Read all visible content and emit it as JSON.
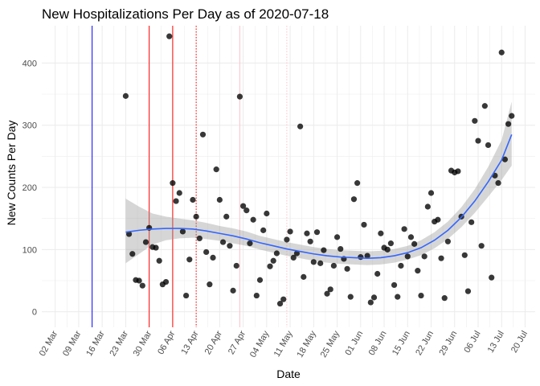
{
  "chart_data": {
    "type": "scatter",
    "title": "New Hospitalizations Per Day as of 2020-07-18",
    "xlabel": "Date",
    "ylabel": "New Counts Per Day",
    "x_range": [
      "2020-02-27",
      "2020-07-23"
    ],
    "ylim": [
      -25,
      460
    ],
    "y_ticks": [
      0,
      100,
      200,
      300,
      400
    ],
    "x_ticks": [
      {
        "date": "2020-03-02",
        "label": "02 Mar"
      },
      {
        "date": "2020-03-09",
        "label": "09 Mar"
      },
      {
        "date": "2020-03-16",
        "label": "16 Mar"
      },
      {
        "date": "2020-03-23",
        "label": "23 Mar"
      },
      {
        "date": "2020-03-30",
        "label": "30 Mar"
      },
      {
        "date": "2020-04-06",
        "label": "06 Apr"
      },
      {
        "date": "2020-04-13",
        "label": "13 Apr"
      },
      {
        "date": "2020-04-20",
        "label": "20 Apr"
      },
      {
        "date": "2020-04-27",
        "label": "27 Apr"
      },
      {
        "date": "2020-05-04",
        "label": "04 May"
      },
      {
        "date": "2020-05-11",
        "label": "11 May"
      },
      {
        "date": "2020-05-18",
        "label": "18 May"
      },
      {
        "date": "2020-05-25",
        "label": "25 May"
      },
      {
        "date": "2020-06-01",
        "label": "01 Jun"
      },
      {
        "date": "2020-06-08",
        "label": "08 Jun"
      },
      {
        "date": "2020-06-15",
        "label": "15 Jun"
      },
      {
        "date": "2020-06-22",
        "label": "22 Jun"
      },
      {
        "date": "2020-06-29",
        "label": "29 Jun"
      },
      {
        "date": "2020-07-06",
        "label": "06 Jul"
      },
      {
        "date": "2020-07-13",
        "label": "13 Jul"
      },
      {
        "date": "2020-07-20",
        "label": "20 Jul"
      }
    ],
    "grid": true,
    "vlines": [
      {
        "date": "2020-03-13",
        "color": "#0000ff",
        "style": "solid"
      },
      {
        "date": "2020-03-30",
        "color": "#ff0000",
        "style": "solid"
      },
      {
        "date": "2020-04-06",
        "color": "#ff0000",
        "style": "solid"
      },
      {
        "date": "2020-04-13",
        "color": "#ff0000",
        "style": "dotted"
      },
      {
        "date": "2020-04-26",
        "color": "#ffc0cb",
        "style": "solid"
      },
      {
        "date": "2020-05-10",
        "color": "#ffc0cb",
        "style": "dotted"
      }
    ],
    "point_color": "#000000",
    "smooth_color": "#3366ff",
    "ribbon_color": "#999999",
    "points": [
      [
        "2020-03-23",
        347
      ],
      [
        "2020-03-24",
        125
      ],
      [
        "2020-03-25",
        93
      ],
      [
        "2020-03-26",
        51
      ],
      [
        "2020-03-27",
        50
      ],
      [
        "2020-03-28",
        42
      ],
      [
        "2020-03-29",
        112
      ],
      [
        "2020-03-30",
        135
      ],
      [
        "2020-03-31",
        104
      ],
      [
        "2020-04-01",
        103
      ],
      [
        "2020-04-02",
        82
      ],
      [
        "2020-04-03",
        44
      ],
      [
        "2020-04-04",
        48
      ],
      [
        "2020-04-05",
        443
      ],
      [
        "2020-04-06",
        207
      ],
      [
        "2020-04-07",
        178
      ],
      [
        "2020-04-08",
        191
      ],
      [
        "2020-04-09",
        129
      ],
      [
        "2020-04-10",
        26
      ],
      [
        "2020-04-11",
        84
      ],
      [
        "2020-04-12",
        180
      ],
      [
        "2020-04-13",
        153
      ],
      [
        "2020-04-14",
        118
      ],
      [
        "2020-04-15",
        285
      ],
      [
        "2020-04-16",
        96
      ],
      [
        "2020-04-17",
        44
      ],
      [
        "2020-04-18",
        87
      ],
      [
        "2020-04-19",
        229
      ],
      [
        "2020-04-20",
        180
      ],
      [
        "2020-04-21",
        112
      ],
      [
        "2020-04-22",
        153
      ],
      [
        "2020-04-23",
        106
      ],
      [
        "2020-04-24",
        34
      ],
      [
        "2020-04-25",
        74
      ],
      [
        "2020-04-26",
        346
      ],
      [
        "2020-04-27",
        170
      ],
      [
        "2020-04-28",
        163
      ],
      [
        "2020-04-29",
        110
      ],
      [
        "2020-04-30",
        148
      ],
      [
        "2020-05-01",
        26
      ],
      [
        "2020-05-02",
        51
      ],
      [
        "2020-05-03",
        131
      ],
      [
        "2020-05-04",
        158
      ],
      [
        "2020-05-05",
        73
      ],
      [
        "2020-05-06",
        82
      ],
      [
        "2020-05-07",
        94
      ],
      [
        "2020-05-08",
        13
      ],
      [
        "2020-05-09",
        20
      ],
      [
        "2020-05-10",
        116
      ],
      [
        "2020-05-11",
        129
      ],
      [
        "2020-05-12",
        87
      ],
      [
        "2020-05-13",
        94
      ],
      [
        "2020-05-14",
        298
      ],
      [
        "2020-05-15",
        56
      ],
      [
        "2020-05-16",
        126
      ],
      [
        "2020-05-17",
        113
      ],
      [
        "2020-05-18",
        80
      ],
      [
        "2020-05-19",
        128
      ],
      [
        "2020-05-20",
        78
      ],
      [
        "2020-05-21",
        99
      ],
      [
        "2020-05-22",
        29
      ],
      [
        "2020-05-23",
        36
      ],
      [
        "2020-05-24",
        74
      ],
      [
        "2020-05-25",
        120
      ],
      [
        "2020-05-26",
        101
      ],
      [
        "2020-05-27",
        85
      ],
      [
        "2020-05-28",
        69
      ],
      [
        "2020-05-29",
        24
      ],
      [
        "2020-05-30",
        181
      ],
      [
        "2020-05-31",
        207
      ],
      [
        "2020-06-01",
        88
      ],
      [
        "2020-06-02",
        140
      ],
      [
        "2020-06-03",
        90
      ],
      [
        "2020-06-04",
        15
      ],
      [
        "2020-06-05",
        23
      ],
      [
        "2020-06-06",
        61
      ],
      [
        "2020-06-07",
        126
      ],
      [
        "2020-06-08",
        103
      ],
      [
        "2020-06-09",
        100
      ],
      [
        "2020-06-10",
        110
      ],
      [
        "2020-06-11",
        43
      ],
      [
        "2020-06-12",
        24
      ],
      [
        "2020-06-13",
        74
      ],
      [
        "2020-06-14",
        133
      ],
      [
        "2020-06-15",
        89
      ],
      [
        "2020-06-16",
        120
      ],
      [
        "2020-06-17",
        109
      ],
      [
        "2020-06-18",
        66
      ],
      [
        "2020-06-19",
        26
      ],
      [
        "2020-06-20",
        89
      ],
      [
        "2020-06-21",
        169
      ],
      [
        "2020-06-22",
        191
      ],
      [
        "2020-06-23",
        145
      ],
      [
        "2020-06-24",
        148
      ],
      [
        "2020-06-25",
        86
      ],
      [
        "2020-06-26",
        22
      ],
      [
        "2020-06-27",
        113
      ],
      [
        "2020-06-28",
        227
      ],
      [
        "2020-06-29",
        224
      ],
      [
        "2020-06-30",
        226
      ],
      [
        "2020-07-01",
        153
      ],
      [
        "2020-07-02",
        91
      ],
      [
        "2020-07-03",
        33
      ],
      [
        "2020-07-04",
        144
      ],
      [
        "2020-07-05",
        307
      ],
      [
        "2020-07-06",
        275
      ],
      [
        "2020-07-07",
        106
      ],
      [
        "2020-07-08",
        331
      ],
      [
        "2020-07-09",
        268
      ],
      [
        "2020-07-10",
        55
      ],
      [
        "2020-07-11",
        219
      ],
      [
        "2020-07-12",
        207
      ],
      [
        "2020-07-13",
        417
      ],
      [
        "2020-07-14",
        245
      ],
      [
        "2020-07-15",
        302
      ],
      [
        "2020-07-16",
        315
      ]
    ],
    "smooth": [
      [
        "2020-03-23",
        128,
        78,
        182
      ],
      [
        "2020-03-27",
        131,
        93,
        169
      ],
      [
        "2020-03-31",
        133,
        108,
        158
      ],
      [
        "2020-04-04",
        134,
        115,
        153
      ],
      [
        "2020-04-08",
        134,
        118,
        150
      ],
      [
        "2020-04-12",
        133,
        119,
        147
      ],
      [
        "2020-04-16",
        130,
        117,
        143
      ],
      [
        "2020-04-20",
        126,
        114,
        138
      ],
      [
        "2020-04-24",
        122,
        110,
        134
      ],
      [
        "2020-04-28",
        117,
        106,
        129
      ],
      [
        "2020-05-02",
        111,
        100,
        122
      ],
      [
        "2020-05-06",
        106,
        95,
        117
      ],
      [
        "2020-05-10",
        101,
        90,
        112
      ],
      [
        "2020-05-14",
        97,
        86,
        108
      ],
      [
        "2020-05-18",
        93,
        82,
        104
      ],
      [
        "2020-05-22",
        90,
        79,
        101
      ],
      [
        "2020-05-26",
        88,
        77,
        99
      ],
      [
        "2020-05-30",
        87,
        76,
        98
      ],
      [
        "2020-06-03",
        86,
        75,
        97
      ],
      [
        "2020-06-07",
        87,
        76,
        98
      ],
      [
        "2020-06-11",
        90,
        79,
        101
      ],
      [
        "2020-06-15",
        95,
        84,
        106
      ],
      [
        "2020-06-19",
        103,
        91,
        115
      ],
      [
        "2020-06-23",
        115,
        102,
        128
      ],
      [
        "2020-06-27",
        131,
        117,
        145
      ],
      [
        "2020-07-01",
        152,
        136,
        168
      ],
      [
        "2020-07-05",
        178,
        159,
        197
      ],
      [
        "2020-07-09",
        209,
        185,
        233
      ],
      [
        "2020-07-13",
        244,
        212,
        276
      ],
      [
        "2020-07-16",
        285,
        235,
        338
      ]
    ]
  }
}
